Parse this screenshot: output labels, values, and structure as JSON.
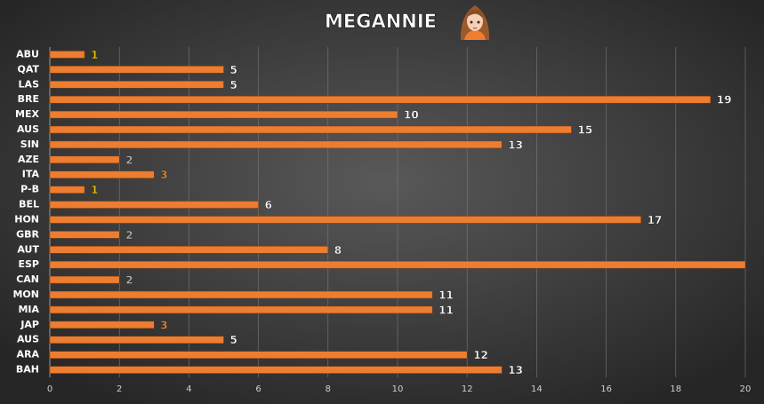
{
  "chart_data": {
    "type": "bar",
    "orientation": "horizontal",
    "title": "MEGANNIE",
    "categories": [
      "ABU",
      "QAT",
      "LAS",
      "BRE",
      "MEX",
      "AUS",
      "SIN",
      "AZE",
      "ITA",
      "P-B",
      "BEL",
      "HON",
      "GBR",
      "AUT",
      "ESP",
      "CAN",
      "MON",
      "MIA",
      "JAP",
      "AUS",
      "ARA",
      "BAH"
    ],
    "values": [
      1,
      5,
      5,
      19,
      10,
      15,
      13,
      2,
      3,
      1,
      6,
      17,
      2,
      8,
      20,
      2,
      11,
      11,
      3,
      5,
      12,
      13
    ],
    "color": "#ed7d31",
    "label_colors": [
      "#f2c200",
      "#ffffff",
      "#ffffff",
      "#ffffff",
      "#ffffff",
      "#ffffff",
      "#ffffff",
      "#b4b4b4",
      "#f08a2c",
      "#f2c200",
      "#ffffff",
      "#ffffff",
      "#b4b4b4",
      "#ffffff",
      "#ffffff",
      "#b4b4b4",
      "#ffffff",
      "#ffffff",
      "#f08a2c",
      "#ffffff",
      "#ffffff",
      "#ffffff"
    ],
    "xlim": [
      0,
      20
    ],
    "xticks": [
      0,
      2,
      4,
      6,
      8,
      10,
      12,
      14,
      16,
      18,
      20
    ],
    "grid": true
  }
}
